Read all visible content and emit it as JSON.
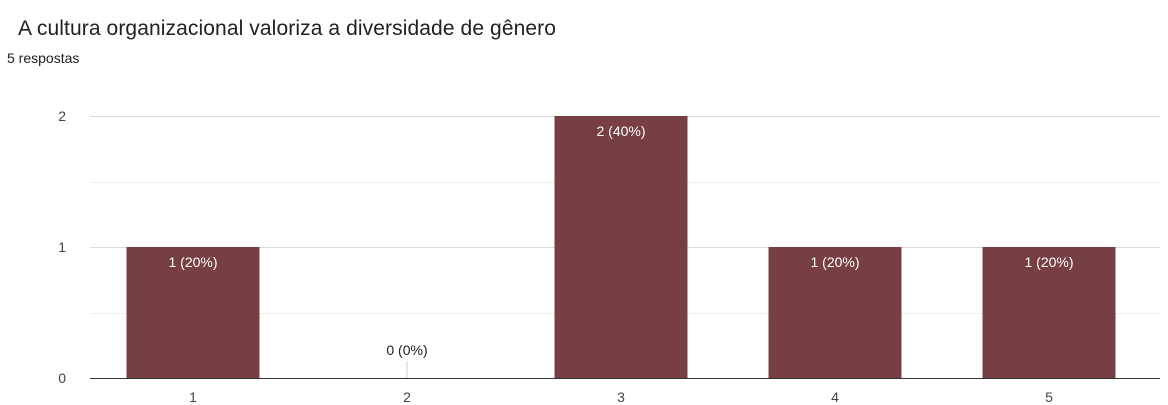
{
  "title": "A cultura organizacional valoriza a diversidade de gênero",
  "subtitle": "5 respostas",
  "chart_data": {
    "type": "bar",
    "categories": [
      "1",
      "2",
      "3",
      "4",
      "5"
    ],
    "values": [
      1,
      0,
      2,
      1,
      1
    ],
    "data_labels": [
      "1 (20%)",
      "0 (0%)",
      "2 (40%)",
      "1 (20%)",
      "1 (20%)"
    ],
    "y_ticks": [
      "0",
      "1",
      "2"
    ],
    "ylim": [
      0,
      2
    ],
    "grid": true,
    "bar_color": "#773f44",
    "label_on_bar_color": "#ffffff",
    "label_off_bar_color": "#202124"
  }
}
